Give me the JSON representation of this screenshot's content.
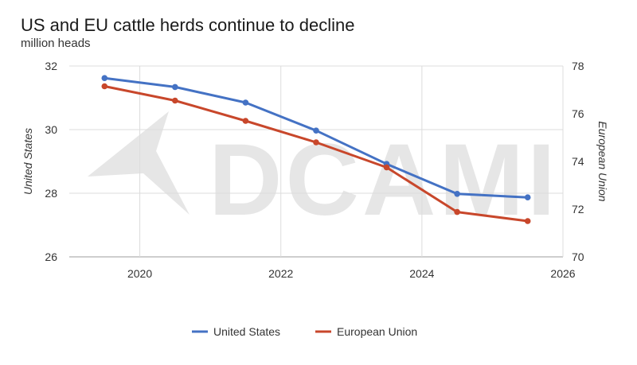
{
  "chart_data": {
    "type": "line",
    "title": "US and EU cattle herds continue to decline",
    "subtitle": "million heads",
    "ylabel": "United States",
    "y2label": "European Union",
    "x_ticks": [
      "2020",
      "2022",
      "2024",
      "2026"
    ],
    "y_ticks": [
      "26",
      "28",
      "30",
      "32"
    ],
    "y2_ticks": [
      "70",
      "72",
      "74",
      "76",
      "78"
    ],
    "xlim": [
      2019,
      2026
    ],
    "ylim": [
      26,
      32
    ],
    "y2lim": [
      70,
      78
    ],
    "grid": true,
    "legend_position": "bottom",
    "watermark": "DCAMI",
    "series": [
      {
        "name": "United States",
        "axis": "left",
        "color": "#4472c4",
        "x": [
          2019.5,
          2020.5,
          2021.5,
          2022.5,
          2023.5,
          2024.5,
          2025.5
        ],
        "values": [
          31.62,
          31.34,
          30.85,
          29.97,
          28.92,
          27.98,
          27.87
        ]
      },
      {
        "name": "European Union",
        "axis": "right",
        "color": "#c8472b",
        "x": [
          2019.5,
          2020.5,
          2021.5,
          2022.5,
          2023.5,
          2024.5,
          2025.5
        ],
        "values": [
          77.15,
          76.55,
          75.7,
          74.8,
          73.75,
          71.88,
          71.5
        ]
      }
    ]
  }
}
